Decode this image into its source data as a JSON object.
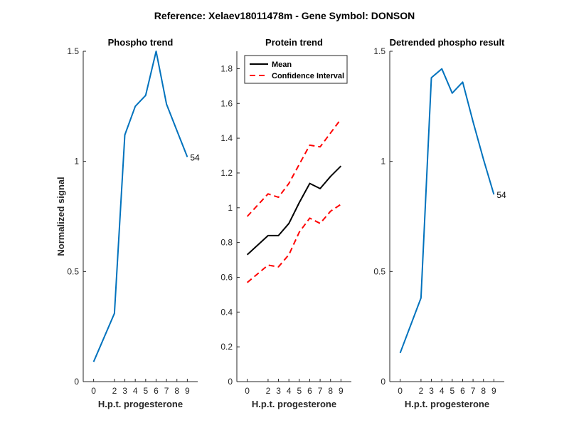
{
  "figure": {
    "suptitle": "Reference:  Xelaev18011478m - Gene Symbol:  DONSON"
  },
  "chart_data": [
    {
      "type": "line",
      "title": "Phospho trend",
      "xlabel": "H.p.t. progesterone",
      "ylabel": "Normalized signal",
      "xlim": [
        -1,
        10
      ],
      "ylim": [
        0,
        1.5
      ],
      "xticks": [
        0,
        2,
        3,
        4,
        5,
        6,
        7,
        8,
        9
      ],
      "yticks": [
        0,
        0.5,
        1,
        1.5
      ],
      "ytick_labels": [
        "0",
        "0.5",
        "1",
        "1.5"
      ],
      "series": [
        {
          "x": [
            0,
            2,
            3,
            4,
            5,
            6,
            7,
            8,
            9
          ],
          "values": [
            0.09,
            0.31,
            1.12,
            1.25,
            1.3,
            1.5,
            1.26,
            1.14,
            1.02
          ],
          "color": "#0072BD",
          "dash": ""
        }
      ],
      "annotation": {
        "text": "54",
        "x": 9,
        "y": 1.02
      },
      "grid": false,
      "legend": null
    },
    {
      "type": "line",
      "title": "Protein trend",
      "xlabel": "H.p.t. progesterone",
      "ylabel": "",
      "xlim": [
        -1,
        10
      ],
      "ylim": [
        0,
        1.9
      ],
      "xticks": [
        0,
        2,
        3,
        4,
        5,
        6,
        7,
        8,
        9
      ],
      "yticks": [
        0,
        0.2,
        0.4,
        0.6,
        0.8,
        1,
        1.2,
        1.4,
        1.6,
        1.8
      ],
      "ytick_labels": [
        "0",
        "0.2",
        "0.4",
        "0.6",
        "0.8",
        "1",
        "1.2",
        "1.4",
        "1.6",
        "1.8"
      ],
      "series": [
        {
          "name": "Mean",
          "x": [
            0,
            2,
            3,
            4,
            5,
            6,
            7,
            8,
            9
          ],
          "values": [
            0.73,
            0.84,
            0.84,
            0.91,
            1.03,
            1.14,
            1.11,
            1.18,
            1.24
          ],
          "color": "#000000",
          "dash": ""
        },
        {
          "name": "Confidence Interval",
          "x": [
            0,
            2,
            3,
            4,
            5,
            6,
            7,
            8,
            9
          ],
          "values": [
            0.95,
            1.08,
            1.06,
            1.14,
            1.25,
            1.36,
            1.35,
            1.43,
            1.51
          ],
          "color": "#ff0000",
          "dash": "8,5"
        },
        {
          "x": [
            0,
            2,
            3,
            4,
            5,
            6,
            7,
            8,
            9
          ],
          "values": [
            0.57,
            0.67,
            0.66,
            0.73,
            0.86,
            0.94,
            0.91,
            0.98,
            1.02
          ],
          "color": "#ff0000",
          "dash": "8,5"
        }
      ],
      "legend": {
        "position": "top-left",
        "entries": [
          {
            "label": "Mean",
            "color": "#000000",
            "dash": ""
          },
          {
            "label": "Confidence Interval",
            "color": "#ff0000",
            "dash": "8,5"
          }
        ]
      },
      "grid": false
    },
    {
      "type": "line",
      "title": "Detrended phospho result",
      "xlabel": "H.p.t. progesterone",
      "ylabel": "",
      "xlim": [
        -1,
        10
      ],
      "ylim": [
        0,
        1.5
      ],
      "xticks": [
        0,
        2,
        3,
        4,
        5,
        6,
        7,
        8,
        9
      ],
      "yticks": [
        0,
        0.5,
        1,
        1.5
      ],
      "ytick_labels": [
        "0",
        "0.5",
        "1",
        "1.5"
      ],
      "series": [
        {
          "x": [
            0,
            2,
            3,
            4,
            5,
            6,
            7,
            8,
            9
          ],
          "values": [
            0.13,
            0.38,
            1.38,
            1.42,
            1.31,
            1.36,
            1.18,
            1.01,
            0.85
          ],
          "color": "#0072BD",
          "dash": ""
        }
      ],
      "annotation": {
        "text": "54",
        "x": 9,
        "y": 0.85
      },
      "grid": false,
      "legend": null
    }
  ]
}
